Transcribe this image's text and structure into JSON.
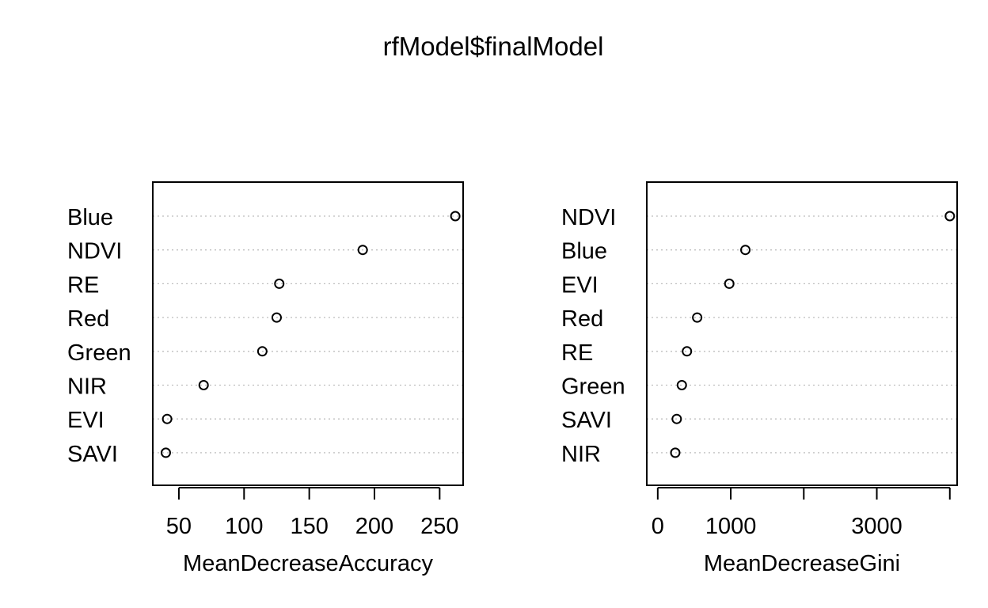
{
  "title": "rfModel$finalModel",
  "chart_data": [
    {
      "type": "scatter",
      "style": "dotchart",
      "variables": [
        "Blue",
        "NDVI",
        "RE",
        "Red",
        "Green",
        "NIR",
        "EVI",
        "SAVI"
      ],
      "values": [
        262,
        191,
        127,
        125,
        114,
        69,
        41,
        40
      ],
      "xlabel": "MeanDecreaseAccuracy",
      "xticks": [
        50,
        100,
        150,
        200,
        250
      ],
      "xlim": [
        30,
        268
      ],
      "grid": "dotted horizontal"
    },
    {
      "type": "scatter",
      "style": "dotchart",
      "variables": [
        "NDVI",
        "Blue",
        "EVI",
        "Red",
        "RE",
        "Green",
        "SAVI",
        "NIR"
      ],
      "values": [
        4000,
        1200,
        980,
        540,
        400,
        330,
        260,
        240
      ],
      "xlabel": "MeanDecreaseGini",
      "xticks": [
        0,
        1000,
        2000,
        3000,
        4000
      ],
      "xtick_labels": [
        "0",
        "1000",
        "",
        "3000",
        ""
      ],
      "xlim": [
        -150,
        4100
      ],
      "grid": "dotted horizontal"
    }
  ],
  "colors": {
    "point_stroke": "#000000",
    "grid": "#bebebe",
    "frame": "#000000"
  }
}
